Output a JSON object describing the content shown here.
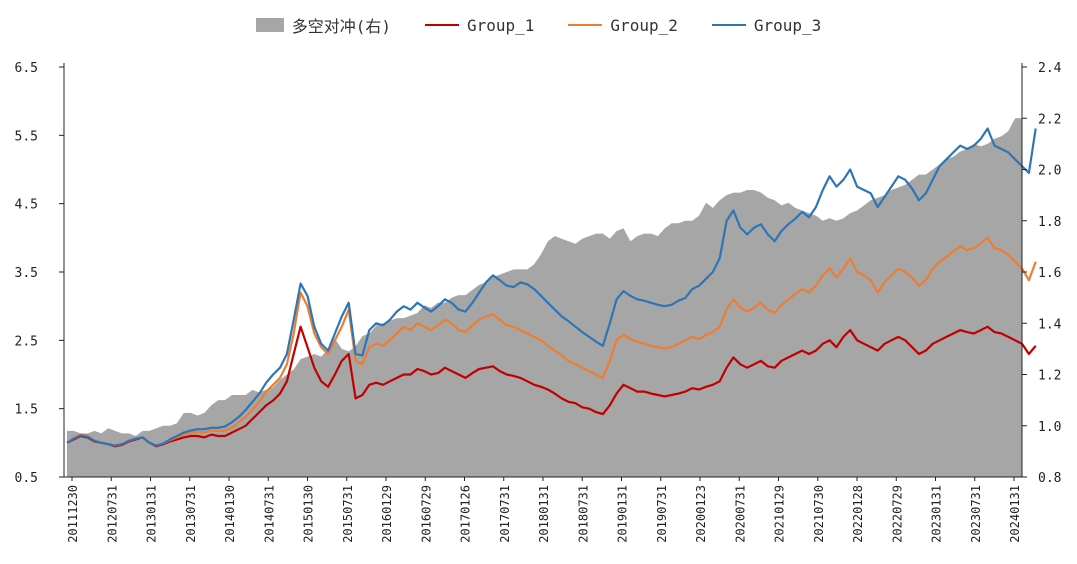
{
  "chart_data": {
    "type": "line",
    "legend": [
      {
        "name": "多空对冲(右)",
        "kind": "area",
        "color": "#a6a6a6"
      },
      {
        "name": "Group_1",
        "kind": "line",
        "color": "#c00000"
      },
      {
        "name": "Group_2",
        "kind": "line",
        "color": "#ed7d31"
      },
      {
        "name": "Group_3",
        "kind": "line",
        "color": "#2e75b6"
      }
    ],
    "legend_position": "top-center",
    "y_left": {
      "min": 0.5,
      "max": 6.5,
      "ticks": [
        "6.5",
        "5.5",
        "4.5",
        "3.5",
        "2.5",
        "1.5",
        "0.5"
      ]
    },
    "y_right": {
      "min": 0.8,
      "max": 2.4,
      "ticks": [
        "2.4",
        "2.2",
        "2.0",
        "1.8",
        "1.6",
        "1.4",
        "1.2",
        "1.0",
        "0.8"
      ]
    },
    "x_tick_labels": [
      "20111230",
      "20120731",
      "20130131",
      "20130731",
      "20140130",
      "20140731",
      "20150130",
      "20150731",
      "20160129",
      "20160729",
      "20170126",
      "20170731",
      "20180131",
      "20180731",
      "20190131",
      "20190731",
      "20200123",
      "20200731",
      "20210129",
      "20210730",
      "20220128",
      "20220729",
      "20230131",
      "20230731",
      "20240131"
    ],
    "grid": false,
    "series": [
      {
        "name": "多空对冲(右)",
        "axis": "right",
        "values": [
          0.98,
          0.98,
          0.97,
          0.97,
          0.98,
          0.97,
          0.99,
          0.98,
          0.97,
          0.97,
          0.96,
          0.98,
          0.98,
          0.99,
          1.0,
          1.0,
          1.01,
          1.05,
          1.05,
          1.04,
          1.05,
          1.08,
          1.1,
          1.1,
          1.12,
          1.12,
          1.12,
          1.14,
          1.13,
          1.14,
          1.15,
          1.18,
          1.2,
          1.22,
          1.26,
          1.27,
          1.28,
          1.27,
          1.3,
          1.34,
          1.3,
          1.29,
          1.31,
          1.35,
          1.36,
          1.39,
          1.4,
          1.41,
          1.42,
          1.42,
          1.43,
          1.44,
          1.47,
          1.46,
          1.48,
          1.48,
          1.5,
          1.51,
          1.51,
          1.53,
          1.55,
          1.56,
          1.58,
          1.59,
          1.6,
          1.61,
          1.61,
          1.61,
          1.63,
          1.67,
          1.72,
          1.74,
          1.73,
          1.72,
          1.71,
          1.73,
          1.74,
          1.75,
          1.75,
          1.73,
          1.76,
          1.77,
          1.72,
          1.74,
          1.75,
          1.75,
          1.74,
          1.77,
          1.79,
          1.79,
          1.8,
          1.8,
          1.82,
          1.87,
          1.85,
          1.88,
          1.9,
          1.91,
          1.91,
          1.92,
          1.92,
          1.91,
          1.89,
          1.88,
          1.86,
          1.87,
          1.85,
          1.84,
          1.83,
          1.82,
          1.8,
          1.81,
          1.8,
          1.81,
          1.83,
          1.84,
          1.86,
          1.88,
          1.89,
          1.9,
          1.92,
          1.93,
          1.94,
          1.96,
          1.98,
          1.98,
          2.0,
          2.02,
          2.04,
          2.05,
          2.07,
          2.08,
          2.1,
          2.09,
          2.1,
          2.12,
          2.13,
          2.15,
          2.2,
          2.2
        ]
      },
      {
        "name": "Group_1",
        "axis": "left",
        "values": [
          1.0,
          1.05,
          1.1,
          1.08,
          1.02,
          1.0,
          0.98,
          0.95,
          0.97,
          1.02,
          1.05,
          1.08,
          1.0,
          0.95,
          0.98,
          1.02,
          1.05,
          1.08,
          1.1,
          1.1,
          1.08,
          1.12,
          1.1,
          1.1,
          1.15,
          1.2,
          1.25,
          1.35,
          1.45,
          1.55,
          1.62,
          1.72,
          1.9,
          2.3,
          2.7,
          2.4,
          2.1,
          1.9,
          1.82,
          2.0,
          2.2,
          2.3,
          1.65,
          1.7,
          1.85,
          1.88,
          1.85,
          1.9,
          1.95,
          2.0,
          2.0,
          2.08,
          2.05,
          2.0,
          2.02,
          2.1,
          2.05,
          2.0,
          1.95,
          2.02,
          2.08,
          2.1,
          2.12,
          2.05,
          2.0,
          1.98,
          1.95,
          1.9,
          1.85,
          1.82,
          1.78,
          1.72,
          1.65,
          1.6,
          1.58,
          1.52,
          1.5,
          1.45,
          1.42,
          1.55,
          1.72,
          1.85,
          1.8,
          1.75,
          1.75,
          1.72,
          1.7,
          1.68,
          1.7,
          1.72,
          1.75,
          1.8,
          1.78,
          1.82,
          1.85,
          1.9,
          2.1,
          2.25,
          2.15,
          2.1,
          2.15,
          2.2,
          2.12,
          2.1,
          2.2,
          2.25,
          2.3,
          2.35,
          2.3,
          2.35,
          2.45,
          2.5,
          2.4,
          2.55,
          2.65,
          2.5,
          2.45,
          2.4,
          2.35,
          2.45,
          2.5,
          2.55,
          2.5,
          2.4,
          2.3,
          2.35,
          2.45,
          2.5,
          2.55,
          2.6,
          2.65,
          2.62,
          2.6,
          2.65,
          2.7,
          2.62,
          2.6,
          2.55,
          2.5,
          2.45,
          2.3,
          2.42
        ]
      },
      {
        "name": "Group_2",
        "axis": "left",
        "values": [
          1.0,
          1.07,
          1.12,
          1.1,
          1.03,
          1.0,
          0.98,
          0.96,
          0.98,
          1.03,
          1.06,
          1.08,
          1.0,
          0.96,
          0.99,
          1.04,
          1.08,
          1.12,
          1.15,
          1.16,
          1.15,
          1.18,
          1.17,
          1.18,
          1.22,
          1.3,
          1.38,
          1.48,
          1.6,
          1.75,
          1.85,
          1.95,
          2.15,
          2.6,
          3.2,
          3.0,
          2.6,
          2.4,
          2.3,
          2.5,
          2.7,
          2.95,
          2.2,
          2.15,
          2.4,
          2.45,
          2.42,
          2.5,
          2.6,
          2.7,
          2.65,
          2.75,
          2.7,
          2.65,
          2.72,
          2.8,
          2.75,
          2.65,
          2.62,
          2.72,
          2.8,
          2.85,
          2.88,
          2.8,
          2.72,
          2.7,
          2.65,
          2.6,
          2.55,
          2.5,
          2.42,
          2.35,
          2.28,
          2.2,
          2.15,
          2.1,
          2.05,
          2.0,
          1.95,
          2.2,
          2.5,
          2.58,
          2.52,
          2.48,
          2.45,
          2.42,
          2.4,
          2.38,
          2.4,
          2.45,
          2.5,
          2.55,
          2.52,
          2.58,
          2.62,
          2.7,
          2.95,
          3.1,
          2.98,
          2.92,
          2.98,
          3.05,
          2.95,
          2.9,
          3.02,
          3.1,
          3.18,
          3.25,
          3.2,
          3.3,
          3.45,
          3.55,
          3.42,
          3.55,
          3.7,
          3.5,
          3.45,
          3.38,
          3.2,
          3.35,
          3.45,
          3.55,
          3.5,
          3.42,
          3.3,
          3.38,
          3.55,
          3.65,
          3.72,
          3.8,
          3.88,
          3.82,
          3.85,
          3.92,
          4.0,
          3.85,
          3.82,
          3.75,
          3.65,
          3.55,
          3.38,
          3.65
        ]
      },
      {
        "name": "Group_3",
        "axis": "left",
        "values": [
          1.0,
          1.06,
          1.11,
          1.09,
          1.03,
          1.0,
          0.98,
          0.96,
          0.98,
          1.03,
          1.06,
          1.08,
          1.0,
          0.96,
          0.99,
          1.05,
          1.1,
          1.15,
          1.18,
          1.2,
          1.2,
          1.22,
          1.22,
          1.24,
          1.3,
          1.38,
          1.48,
          1.6,
          1.72,
          1.88,
          2.0,
          2.1,
          2.3,
          2.8,
          3.33,
          3.15,
          2.7,
          2.45,
          2.35,
          2.6,
          2.85,
          3.05,
          2.3,
          2.28,
          2.65,
          2.75,
          2.72,
          2.8,
          2.92,
          3.0,
          2.95,
          3.05,
          2.98,
          2.92,
          3.0,
          3.1,
          3.05,
          2.95,
          2.92,
          3.05,
          3.2,
          3.35,
          3.45,
          3.38,
          3.3,
          3.28,
          3.35,
          3.32,
          3.25,
          3.15,
          3.05,
          2.95,
          2.85,
          2.78,
          2.7,
          2.62,
          2.55,
          2.48,
          2.42,
          2.75,
          3.1,
          3.22,
          3.15,
          3.1,
          3.08,
          3.05,
          3.02,
          3.0,
          3.02,
          3.08,
          3.12,
          3.25,
          3.3,
          3.4,
          3.5,
          3.7,
          4.25,
          4.4,
          4.15,
          4.05,
          4.15,
          4.2,
          4.05,
          3.95,
          4.1,
          4.2,
          4.28,
          4.38,
          4.3,
          4.45,
          4.7,
          4.9,
          4.75,
          4.85,
          5.0,
          4.75,
          4.7,
          4.65,
          4.45,
          4.6,
          4.75,
          4.9,
          4.85,
          4.72,
          4.55,
          4.65,
          4.85,
          5.05,
          5.15,
          5.25,
          5.35,
          5.3,
          5.35,
          5.45,
          5.6,
          5.35,
          5.3,
          5.25,
          5.15,
          5.05,
          4.95,
          5.6
        ]
      }
    ]
  }
}
